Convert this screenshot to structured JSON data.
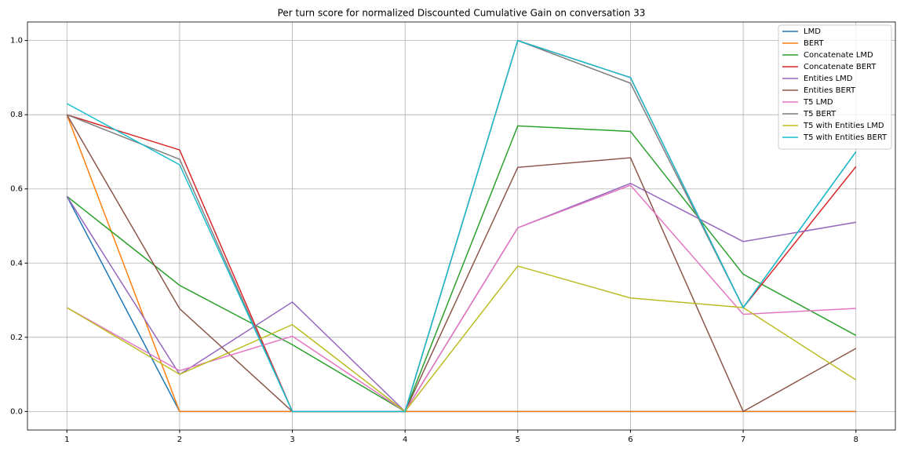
{
  "chart_data": {
    "type": "line",
    "title": "Per turn score for normalized Discounted Cumulative Gain on conversation 33",
    "x": [
      1,
      2,
      3,
      4,
      5,
      6,
      7,
      8
    ],
    "xlim": [
      0.65,
      8.35
    ],
    "xticks": [
      1,
      2,
      3,
      4,
      5,
      6,
      7,
      8
    ],
    "ylim": [
      -0.05,
      1.05
    ],
    "yticks": [
      {
        "value": 0,
        "label": "0.0"
      },
      0.2,
      0.4,
      0.6,
      0.8,
      {
        "value": 1,
        "label": "1.0"
      }
    ],
    "grid": true,
    "legend": "upper right",
    "series": [
      {
        "name": "LMD",
        "color": "#1f77b4",
        "values": [
          0.58,
          0,
          0,
          0,
          0,
          0,
          0,
          0
        ]
      },
      {
        "name": "BERT",
        "color": "#ff7f0e",
        "values": [
          0.8,
          0,
          0,
          0,
          0,
          0,
          0,
          0
        ]
      },
      {
        "name": "Concatenate LMD",
        "color": "#2ca02c",
        "values": [
          0.58,
          0.34,
          0.18,
          0,
          0.77,
          0.755,
          0.37,
          0.205
        ]
      },
      {
        "name": "Concatenate BERT",
        "color": "#d62728",
        "values": [
          0.8,
          0.705,
          0,
          0,
          1.0,
          0.9,
          0.28,
          0.66
        ]
      },
      {
        "name": "Entities LMD",
        "color": "#9467bd",
        "values": [
          0.58,
          0.1,
          0.295,
          0,
          0.495,
          0.615,
          0.458,
          0.51
        ]
      },
      {
        "name": "Entities BERT",
        "color": "#8c564b",
        "values": [
          0.8,
          0.277,
          0,
          0,
          0.658,
          0.684,
          0,
          0.17
        ]
      },
      {
        "name": "T5 LMD",
        "color": "#e377c2",
        "values": [
          0.28,
          0.11,
          0.203,
          0,
          0.495,
          0.61,
          0.262,
          0.278
        ]
      },
      {
        "name": "T5 BERT",
        "color": "#7f7f7f",
        "values": [
          0.8,
          0.68,
          0,
          0,
          1.0,
          0.885,
          0.28,
          0.7
        ]
      },
      {
        "name": "T5 with Entities LMD",
        "color": "#bcbd22",
        "values": [
          0.28,
          0.1,
          0.234,
          0,
          0.392,
          0.306,
          0.28,
          0.085
        ]
      },
      {
        "name": "T5 with Entities BERT",
        "color": "#17becf",
        "values": [
          0.83,
          0.665,
          0,
          0,
          1.0,
          0.9,
          0.28,
          0.7
        ]
      }
    ]
  }
}
